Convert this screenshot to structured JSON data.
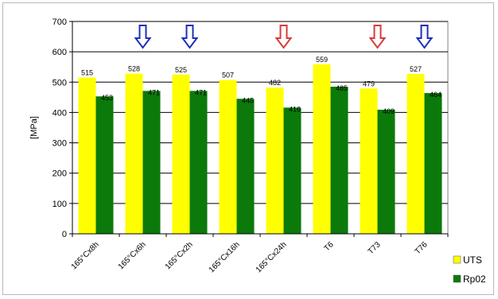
{
  "chart_data": {
    "type": "bar",
    "ylabel": "[MPa]",
    "ylim": [
      0,
      700
    ],
    "yticks": [
      "0",
      "100",
      "200",
      "300",
      "400",
      "500",
      "600",
      "700"
    ],
    "grid": true,
    "legend_position": "bottom-right",
    "categories": [
      "165°Cx8h",
      "165°Cx6h",
      "165°Cx2h",
      "165°Cx16h",
      "165°Cx24h",
      "T6",
      "T73",
      "T76"
    ],
    "series": [
      {
        "name": "UTS",
        "color": "#ffff00",
        "values": [
          515,
          528,
          525,
          507,
          482,
          559,
          479,
          527
        ],
        "labels": [
          "515",
          "528",
          "525",
          "507",
          "482",
          "559",
          "479",
          "527"
        ]
      },
      {
        "name": "Rp02",
        "color": "#0b7a0b",
        "values": [
          453,
          471,
          471,
          445,
          416,
          485,
          409,
          464
        ],
        "labels": [
          "453",
          "471",
          "471",
          "445",
          "416",
          "485",
          "409",
          "464"
        ]
      }
    ],
    "markers": [
      {
        "category_index": 1,
        "direction": "down",
        "color": "#1f2fb8"
      },
      {
        "category_index": 2,
        "direction": "down",
        "color": "#1f2fb8"
      },
      {
        "category_index": 4,
        "direction": "down",
        "color": "#d93a3a"
      },
      {
        "category_index": 6,
        "direction": "down",
        "color": "#d93a3a"
      },
      {
        "category_index": 7,
        "direction": "down",
        "color": "#1f2fb8"
      }
    ]
  }
}
